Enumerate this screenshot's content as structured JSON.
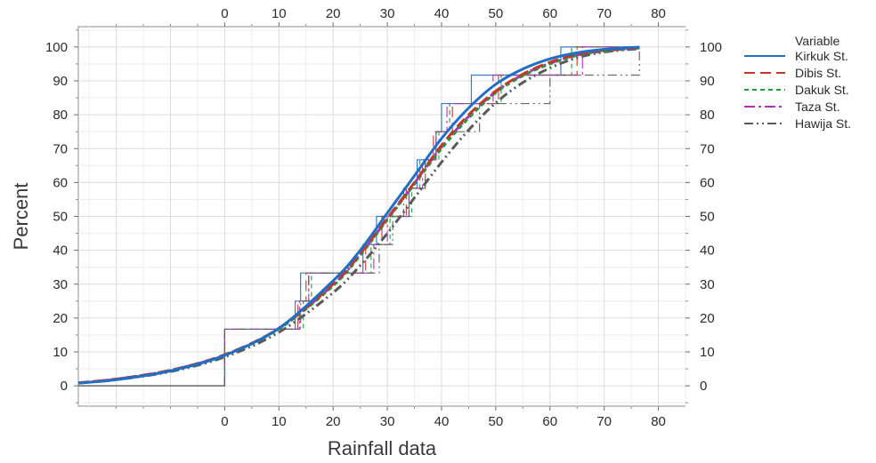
{
  "chart_data": {
    "type": "line",
    "xlabel": "Rainfall data",
    "ylabel": "Percent",
    "xlim": [
      -27,
      85
    ],
    "ylim": [
      -6,
      106
    ],
    "x_ticks": [
      0,
      10,
      20,
      30,
      40,
      50,
      60,
      70,
      80
    ],
    "y_ticks": [
      0,
      10,
      20,
      30,
      40,
      50,
      60,
      70,
      80,
      90,
      100
    ],
    "grid": true,
    "legend": {
      "title": "Variable",
      "position": "right"
    },
    "series": [
      {
        "name": "Kirkuk St.",
        "color": "#1f6fc4",
        "dash": "solid",
        "fitted_x": [
          -27,
          -20,
          -10,
          0,
          10,
          20,
          25,
          30,
          35,
          40,
          45,
          50,
          55,
          60,
          65,
          70,
          76.5
        ],
        "fitted_y": [
          0.8,
          1.8,
          4.4,
          9,
          17,
          31,
          40,
          51,
          62,
          73,
          82,
          89,
          93.5,
          96.5,
          98.3,
          99.3,
          100
        ],
        "step_x": [
          0,
          13,
          14,
          25.5,
          28,
          34,
          35.5,
          39,
          40,
          45.5,
          50,
          62,
          63,
          76.5
        ],
        "step_y": [
          16.7,
          25,
          33.3,
          41.7,
          50,
          58.3,
          66.7,
          75,
          83.3,
          91.7,
          91.7,
          100,
          100,
          100
        ]
      },
      {
        "name": "Dibis St.",
        "color": "#c0392b",
        "dash": "long-dash",
        "fitted_x": [
          -27,
          -20,
          -10,
          0,
          10,
          20,
          25,
          30,
          35,
          40,
          45,
          50,
          55,
          60,
          65,
          70,
          76.5
        ],
        "fitted_y": [
          0.9,
          2,
          4.6,
          9.2,
          17,
          30,
          39,
          49.5,
          60,
          71,
          80,
          87,
          92,
          95.5,
          97.8,
          99,
          99.8
        ],
        "step_x": [
          0,
          13.5,
          15,
          26,
          29,
          33.5,
          37,
          38.5,
          42,
          50.5,
          65,
          76.5
        ],
        "step_y": [
          16.7,
          25,
          33.3,
          41.7,
          50,
          58.3,
          66.7,
          75,
          83.3,
          91.7,
          100,
          100
        ]
      },
      {
        "name": "Dakuk St.",
        "color": "#1f9c3a",
        "dash": "short-dash",
        "fitted_x": [
          -27,
          -20,
          -10,
          0,
          10,
          20,
          25,
          30,
          35,
          40,
          45,
          50,
          55,
          60,
          65,
          70,
          76.5
        ],
        "fitted_y": [
          0.8,
          1.9,
          4.5,
          9,
          16.8,
          29.5,
          38.5,
          49,
          59.5,
          70,
          79,
          86.5,
          91.5,
          95,
          97.5,
          98.8,
          99.7
        ],
        "step_x": [
          0,
          14.5,
          16,
          27,
          30.5,
          34.5,
          36,
          39.5,
          41.5,
          51,
          64,
          76.5
        ],
        "step_y": [
          16.7,
          25,
          33.3,
          41.7,
          50,
          58.3,
          66.7,
          75,
          83.3,
          91.7,
          100,
          100
        ]
      },
      {
        "name": "Taza St.",
        "color": "#b42fc0",
        "dash": "dash-dot",
        "fitted_x": [
          -27,
          -20,
          -10,
          0,
          10,
          20,
          25,
          30,
          35,
          40,
          45,
          50,
          55,
          60,
          65,
          70,
          76.5
        ],
        "fitted_y": [
          0.9,
          2,
          4.6,
          9.1,
          16.9,
          29.8,
          38.8,
          49.2,
          59.8,
          70.5,
          79.5,
          86.8,
          91.8,
          95.2,
          97.6,
          98.9,
          99.7
        ],
        "step_x": [
          0,
          13.8,
          15.5,
          27.5,
          30,
          34,
          36.5,
          39,
          41,
          49.5,
          66,
          76.5
        ],
        "step_y": [
          16.7,
          25,
          33.3,
          41.7,
          50,
          58.3,
          66.7,
          75,
          83.3,
          91.7,
          100,
          100
        ]
      },
      {
        "name": "Hawija St.",
        "color": "#5a5a5a",
        "dash": "dash-dot-dot",
        "fitted_x": [
          -27,
          -20,
          -10,
          0,
          10,
          20,
          25,
          30,
          35,
          40,
          45,
          50,
          55,
          60,
          65,
          70,
          76.5
        ],
        "fitted_y": [
          0.8,
          1.8,
          4.2,
          8.5,
          15.8,
          27.5,
          35.5,
          45,
          55.5,
          66,
          75.5,
          83.5,
          89.5,
          93.8,
          96.8,
          98.5,
          99.5
        ],
        "step_x": [
          0,
          14,
          15.5,
          24,
          28.5,
          31,
          33,
          37,
          39,
          47,
          55,
          60,
          76.5
        ],
        "step_y": [
          16.7,
          25,
          33.3,
          33.3,
          41.7,
          50,
          58.3,
          66.7,
          75,
          83.3,
          83.3,
          91.7,
          100
        ]
      }
    ]
  }
}
